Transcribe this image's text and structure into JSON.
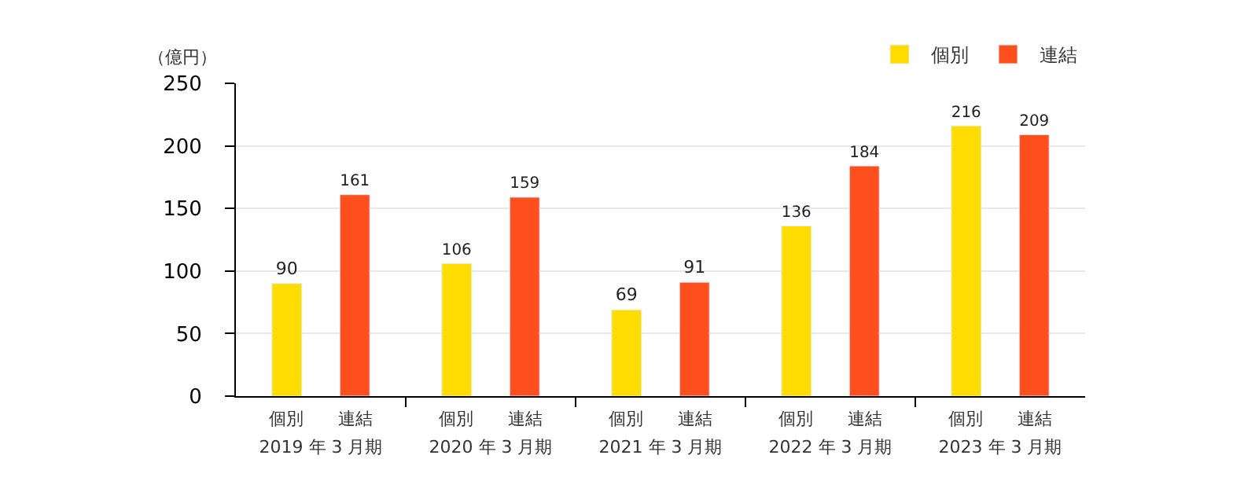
{
  "chart_data": {
    "type": "bar",
    "ylabel": "（億円）",
    "categories": [
      "2019 年 3 月期",
      "2020 年 3 月期",
      "2021 年 3 月期",
      "2022 年 3 月期",
      "2023 年 3 月期"
    ],
    "series": [
      {
        "name": "個別",
        "color": "#ffdd00",
        "values": [
          90,
          106,
          69,
          136,
          216
        ]
      },
      {
        "name": "連結",
        "color": "#ff4f1f",
        "values": [
          161,
          159,
          91,
          184,
          209
        ]
      }
    ],
    "ylim": [
      0,
      250
    ],
    "yticks": [
      0,
      50,
      100,
      150,
      200,
      250
    ],
    "grid": "y",
    "legend": "top right",
    "data_labels": true
  }
}
